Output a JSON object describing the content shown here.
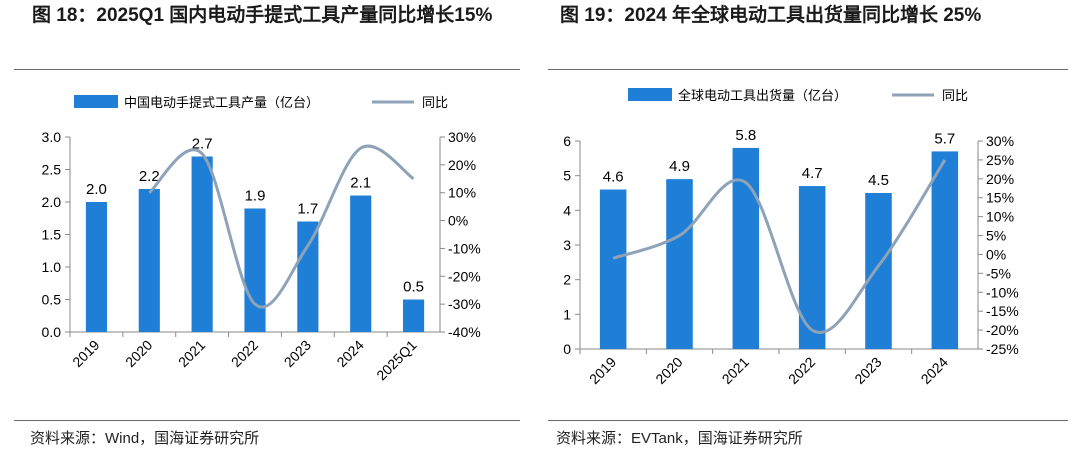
{
  "figures": [
    {
      "title": "图 18：2025Q1 国内电动手提式工具产量同比增长15%",
      "source": "资料来源：Wind，国海证券研究所"
    },
    {
      "title": "图 19：2024 年全球电动工具出货量同比增长 25%",
      "source": "资料来源：EVTank，国海证券研究所"
    }
  ],
  "colors": {
    "bar": "#1f7fd6",
    "line": "#8ea2b8",
    "text": "#000000",
    "rule": "#6a6a6a"
  },
  "chart_data": [
    {
      "type": "bar",
      "categories": [
        "2019",
        "2020",
        "2021",
        "2022",
        "2023",
        "2024",
        "2025Q1"
      ],
      "series": [
        {
          "name": "中国电动手提式工具产量（亿台）",
          "type": "bar",
          "axis": "left",
          "values": [
            2.0,
            2.2,
            2.7,
            1.9,
            1.7,
            2.1,
            0.5
          ],
          "labels": [
            "2.0",
            "2.2",
            "2.7",
            "1.9",
            "1.7",
            "2.1",
            "0.5"
          ]
        },
        {
          "name": "同比",
          "type": "line",
          "axis": "right",
          "values": [
            null,
            10,
            24,
            -30,
            -9,
            26,
            15
          ]
        }
      ],
      "y_left": {
        "min": 0,
        "max": 3.0,
        "ticks": [
          "0.0",
          "0.5",
          "1.0",
          "1.5",
          "2.0",
          "2.5",
          "3.0"
        ]
      },
      "y_right": {
        "min": -40,
        "max": 30,
        "ticks": [
          "-40%",
          "-30%",
          "-20%",
          "-10%",
          "0%",
          "10%",
          "20%",
          "30%"
        ]
      },
      "legend_position": "top-center",
      "grid": false
    },
    {
      "type": "bar",
      "categories": [
        "2019",
        "2020",
        "2021",
        "2022",
        "2023",
        "2024"
      ],
      "series": [
        {
          "name": "全球电动工具出货量（亿台）",
          "type": "bar",
          "axis": "left",
          "values": [
            4.6,
            4.9,
            5.8,
            4.7,
            4.5,
            5.7
          ],
          "labels": [
            "4.6",
            "4.9",
            "5.8",
            "4.7",
            "4.5",
            "5.7"
          ]
        },
        {
          "name": "同比",
          "type": "line",
          "axis": "right",
          "values": [
            -1,
            5,
            19,
            -20,
            -3,
            25
          ]
        }
      ],
      "y_left": {
        "min": 0,
        "max": 6,
        "ticks": [
          "0",
          "1",
          "2",
          "3",
          "4",
          "5",
          "6"
        ]
      },
      "y_right": {
        "min": -25,
        "max": 30,
        "ticks": [
          "-25%",
          "-20%",
          "-15%",
          "-10%",
          "-5%",
          "0%",
          "5%",
          "10%",
          "15%",
          "20%",
          "25%",
          "30%"
        ]
      },
      "legend_position": "top-center",
      "grid": false
    }
  ]
}
